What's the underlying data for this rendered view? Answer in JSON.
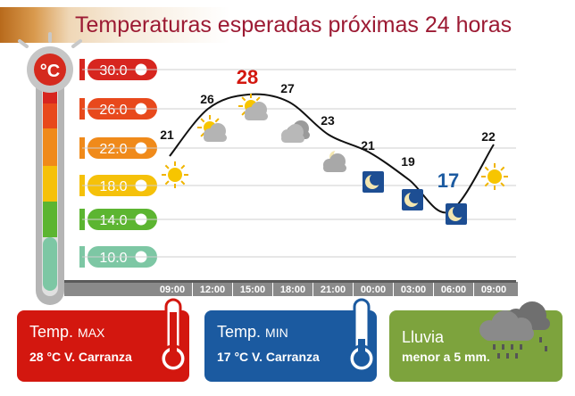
{
  "header": {
    "title": "Temperaturas esperadas próximas 24 horas"
  },
  "thermometer": {
    "unit": "°C"
  },
  "scale_labels": [
    "30.0",
    "26.0",
    "22.0",
    "18.0",
    "14.0",
    "10.0"
  ],
  "scale_colors": [
    "#d7261f",
    "#e8491c",
    "#f08a1a",
    "#f5c10a",
    "#5cb531",
    "#7dc7a4"
  ],
  "colors": {
    "max": "#d3170f",
    "min": "#1b5aa0",
    "rain": "#7da33d",
    "accent": "#9c1a33"
  },
  "chart_data": {
    "type": "line",
    "title": "Temperaturas esperadas próximas 24 horas",
    "x": [
      "09:00",
      "12:00",
      "15:00",
      "18:00",
      "21:00",
      "00:00",
      "03:00",
      "06:00",
      "09:00"
    ],
    "series": [
      {
        "values": [
          21,
          26,
          28,
          27,
          23,
          21,
          19,
          17,
          22
        ]
      }
    ],
    "ylim": [
      10,
      30
    ],
    "ticks": [
      "30.0",
      "26.0",
      "22.0",
      "18.0",
      "14.0",
      "10.0"
    ],
    "highlight": {
      "max": 28,
      "min": 17
    },
    "icons": [
      "sun-icon",
      "sun-cloud-icon",
      "sun-cloud-icon",
      "cloud-icon",
      "moon-cloud-icon",
      "moon-icon",
      "moon-icon",
      "moon-icon",
      "sun-icon"
    ]
  },
  "cards": {
    "max": {
      "label": "Temp.",
      "sub": "MAX",
      "value": "28  °C  V. Carranza"
    },
    "min": {
      "label": "Temp.",
      "sub": "MIN",
      "value": "17  °C  V. Carranza"
    },
    "rain": {
      "label": "Lluvia",
      "value": "menor a 5 mm."
    }
  }
}
